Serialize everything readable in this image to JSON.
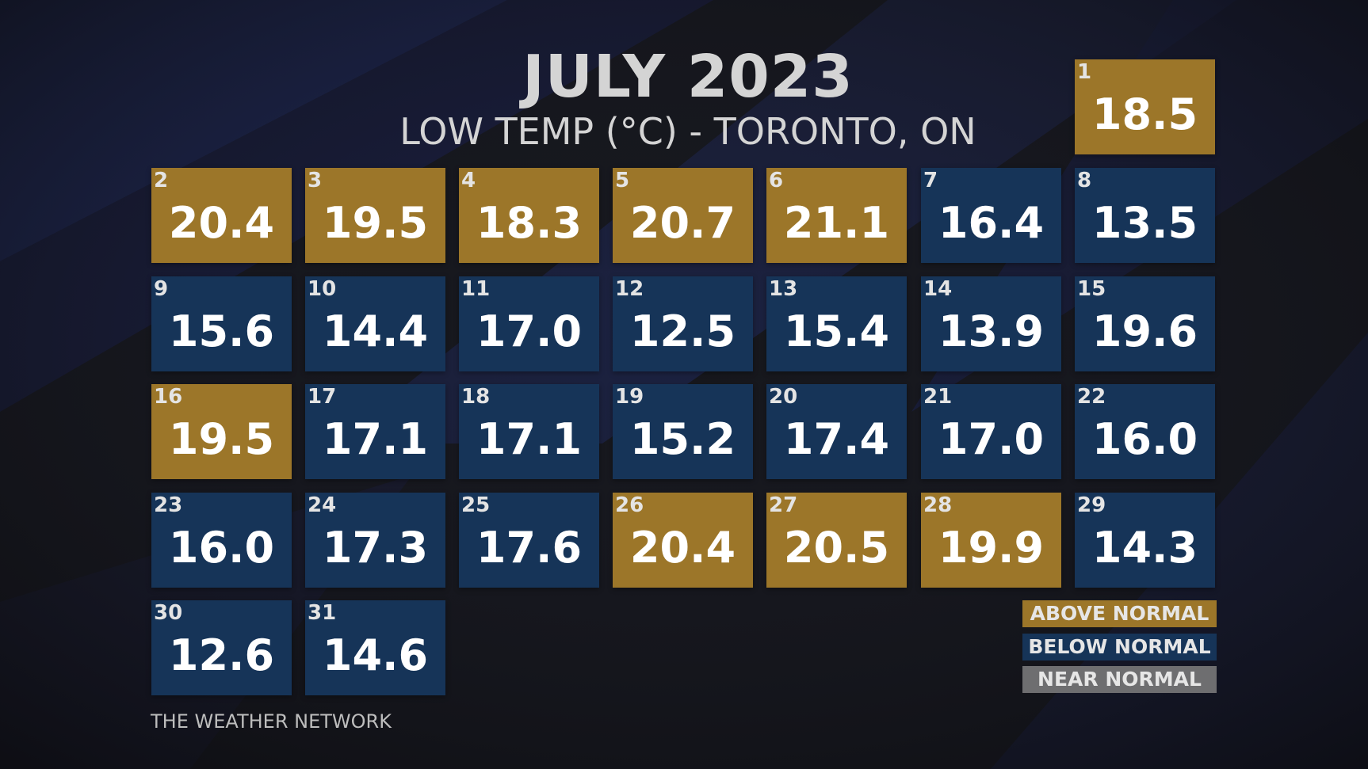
{
  "title": "JULY 2023",
  "subtitle": "LOW TEMP (°C) - TORONTO, ON",
  "footer": "THE WEATHER NETWORK",
  "colors": {
    "above": "#9c7629",
    "below": "#163458",
    "near": "#6e6e70",
    "background": "#15161b"
  },
  "legend": [
    {
      "label": "ABOVE NORMAL",
      "category": "above"
    },
    {
      "label": "BELOW NORMAL",
      "category": "below"
    },
    {
      "label": "NEAR NORMAL",
      "category": "near"
    }
  ],
  "chart_data": {
    "type": "table",
    "title": "JULY 2023",
    "subtitle": "LOW TEMP (°C) - TORONTO, ON",
    "columns_per_week": 7,
    "days": [
      {
        "day": "1",
        "value": "18.5",
        "category": "above"
      },
      {
        "day": "2",
        "value": "20.4",
        "category": "above"
      },
      {
        "day": "3",
        "value": "19.5",
        "category": "above"
      },
      {
        "day": "4",
        "value": "18.3",
        "category": "above"
      },
      {
        "day": "5",
        "value": "20.7",
        "category": "above"
      },
      {
        "day": "6",
        "value": "21.1",
        "category": "above"
      },
      {
        "day": "7",
        "value": "16.4",
        "category": "below"
      },
      {
        "day": "8",
        "value": "13.5",
        "category": "below"
      },
      {
        "day": "9",
        "value": "15.6",
        "category": "below"
      },
      {
        "day": "10",
        "value": "14.4",
        "category": "below"
      },
      {
        "day": "11",
        "value": "17.0",
        "category": "below"
      },
      {
        "day": "12",
        "value": "12.5",
        "category": "below"
      },
      {
        "day": "13",
        "value": "15.4",
        "category": "below"
      },
      {
        "day": "14",
        "value": "13.9",
        "category": "below"
      },
      {
        "day": "15",
        "value": "19.6",
        "category": "below"
      },
      {
        "day": "16",
        "value": "19.5",
        "category": "above"
      },
      {
        "day": "17",
        "value": "17.1",
        "category": "below"
      },
      {
        "day": "18",
        "value": "17.1",
        "category": "below"
      },
      {
        "day": "19",
        "value": "15.2",
        "category": "below"
      },
      {
        "day": "20",
        "value": "17.4",
        "category": "below"
      },
      {
        "day": "21",
        "value": "17.0",
        "category": "below"
      },
      {
        "day": "22",
        "value": "16.0",
        "category": "below"
      },
      {
        "day": "23",
        "value": "16.0",
        "category": "below"
      },
      {
        "day": "24",
        "value": "17.3",
        "category": "below"
      },
      {
        "day": "25",
        "value": "17.6",
        "category": "below"
      },
      {
        "day": "26",
        "value": "20.4",
        "category": "above"
      },
      {
        "day": "27",
        "value": "20.5",
        "category": "above"
      },
      {
        "day": "28",
        "value": "19.9",
        "category": "above"
      },
      {
        "day": "29",
        "value": "14.3",
        "category": "below"
      },
      {
        "day": "30",
        "value": "12.6",
        "category": "below"
      },
      {
        "day": "31",
        "value": "14.6",
        "category": "below"
      }
    ]
  }
}
